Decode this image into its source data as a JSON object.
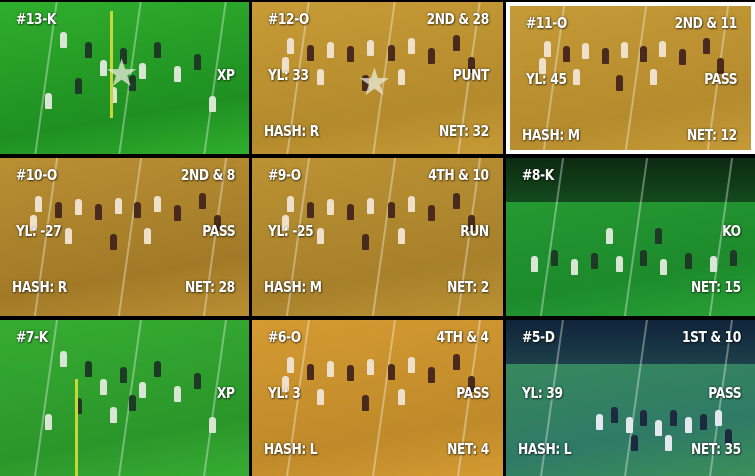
{
  "tiles": [
    {
      "id": "13",
      "label": "#13-K",
      "down": "",
      "yl": "",
      "play": "XP",
      "hash": "",
      "net": "",
      "bg": "#1f8f22",
      "bg2": "#2fae2c",
      "selected": false,
      "star": true,
      "scene": "kick"
    },
    {
      "id": "12",
      "label": "#12-O",
      "down": "2ND & 28",
      "yl": "YL: 33",
      "play": "PUNT",
      "hash": "HASH: R",
      "net": "NET: 32",
      "bg": "#b38a2c",
      "bg2": "#c79b36",
      "selected": false,
      "star": true,
      "scene": "offense"
    },
    {
      "id": "11",
      "label": "#11-O",
      "down": "2ND & 11",
      "yl": "YL: 45",
      "play": "PASS",
      "hash": "HASH: M",
      "net": "NET: 12",
      "bg": "#b58b2d",
      "bg2": "#c59a37",
      "selected": true,
      "star": false,
      "scene": "offense"
    },
    {
      "id": "10",
      "label": "#10-O",
      "down": "2ND & 8",
      "yl": "YL: -27",
      "play": "PASS",
      "hash": "HASH: R",
      "net": "NET: 28",
      "bg": "#a27a27",
      "bg2": "#b98f33",
      "selected": false,
      "star": false,
      "scene": "offense"
    },
    {
      "id": "9",
      "label": "#9-O",
      "down": "4TH & 10",
      "yl": "YL: -25",
      "play": "RUN",
      "hash": "HASH: M",
      "net": "NET: 2",
      "bg": "#a7802a",
      "bg2": "#bb9233",
      "selected": false,
      "star": false,
      "scene": "offense"
    },
    {
      "id": "8",
      "label": "#8-K",
      "down": "",
      "yl": "",
      "play": "KO",
      "hash": "",
      "net": "NET: 15",
      "bg": "#1d8a2c",
      "bg2": "#28a034",
      "selected": false,
      "star": false,
      "scene": "wide"
    },
    {
      "id": "7",
      "label": "#7-K",
      "down": "",
      "yl": "",
      "play": "XP",
      "hash": "",
      "net": "",
      "bg": "#2a962a",
      "bg2": "#37ac33",
      "selected": false,
      "star": false,
      "scene": "kick"
    },
    {
      "id": "6",
      "label": "#6-O",
      "down": "4TH & 4",
      "yl": "YL: 3",
      "play": "PASS",
      "hash": "HASH: L",
      "net": "NET: 4",
      "bg": "#bf8a2a",
      "bg2": "#d49a32",
      "selected": false,
      "star": false,
      "scene": "offense"
    },
    {
      "id": "5",
      "label": "#5-D",
      "down": "1ST & 10",
      "yl": "YL: 39",
      "play": "PASS",
      "hash": "HASH: L",
      "net": "NET: 35",
      "bg": "#2f7a66",
      "bg2": "#3b8f5a",
      "selected": false,
      "star": false,
      "scene": "night"
    }
  ]
}
